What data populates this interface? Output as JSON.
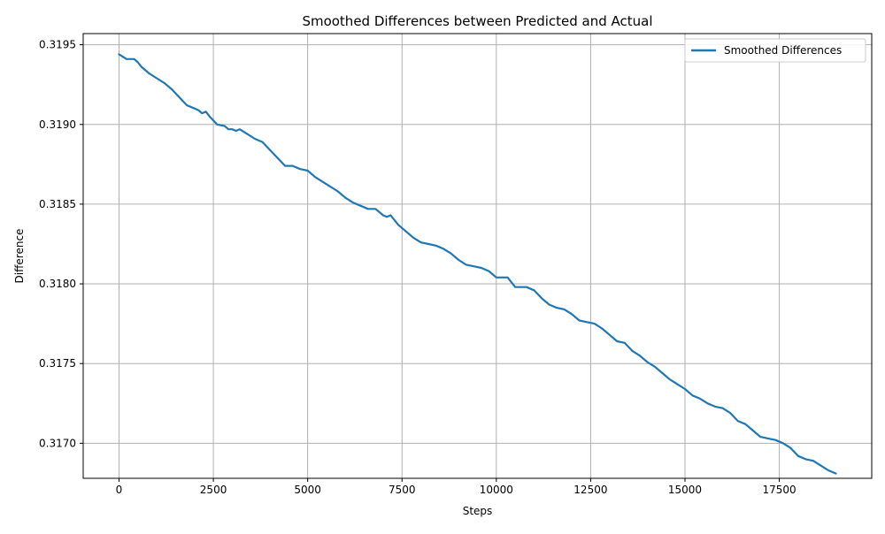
{
  "chart_data": {
    "type": "line",
    "title": "Smoothed Differences between Predicted and Actual",
    "xlabel": "Steps",
    "ylabel": "Difference",
    "xlim": [
      -950,
      19950
    ],
    "ylim": [
      0.31678,
      0.31957
    ],
    "xticks": [
      0,
      2500,
      5000,
      7500,
      10000,
      12500,
      15000,
      17500
    ],
    "xtick_labels": [
      "0",
      "2500",
      "5000",
      "7500",
      "10000",
      "12500",
      "15000",
      "17500"
    ],
    "yticks": [
      0.317,
      0.3175,
      0.318,
      0.3185,
      0.319,
      0.3195
    ],
    "ytick_labels": [
      "0.3170",
      "0.3175",
      "0.3180",
      "0.3185",
      "0.3190",
      "0.3195"
    ],
    "grid": true,
    "legend_position": "top-right",
    "series": [
      {
        "name": "Smoothed Differences",
        "color": "#1f77b4",
        "x": [
          0,
          200,
          400,
          500,
          600,
          800,
          1000,
          1200,
          1400,
          1600,
          1800,
          2000,
          2100,
          2200,
          2300,
          2400,
          2600,
          2800,
          2900,
          3000,
          3100,
          3200,
          3400,
          3600,
          3800,
          4000,
          4200,
          4400,
          4600,
          4800,
          5000,
          5200,
          5400,
          5600,
          5800,
          6000,
          6200,
          6400,
          6600,
          6800,
          7000,
          7100,
          7200,
          7400,
          7600,
          7800,
          8000,
          8200,
          8400,
          8600,
          8800,
          9000,
          9200,
          9400,
          9600,
          9800,
          10000,
          10200,
          10300,
          10500,
          10700,
          10800,
          11000,
          11200,
          11400,
          11600,
          11800,
          12000,
          12200,
          12400,
          12600,
          12800,
          13000,
          13200,
          13400,
          13600,
          13800,
          14000,
          14200,
          14400,
          14600,
          14800,
          15000,
          15200,
          15400,
          15600,
          15800,
          16000,
          16200,
          16400,
          16600,
          16800,
          17000,
          17200,
          17400,
          17600,
          17800,
          18000,
          18200,
          18400,
          18600,
          18800,
          19000
        ],
        "y": [
          0.31944,
          0.31941,
          0.31941,
          0.31939,
          0.31936,
          0.31932,
          0.31929,
          0.31926,
          0.31922,
          0.31917,
          0.31912,
          0.3191,
          0.31909,
          0.31907,
          0.31908,
          0.31905,
          0.319,
          0.31899,
          0.31897,
          0.31897,
          0.31896,
          0.31897,
          0.31894,
          0.31891,
          0.31889,
          0.31884,
          0.31879,
          0.31874,
          0.31874,
          0.31872,
          0.31871,
          0.31867,
          0.31864,
          0.31861,
          0.31858,
          0.31854,
          0.31851,
          0.31849,
          0.31847,
          0.31847,
          0.31843,
          0.31842,
          0.31843,
          0.31837,
          0.31833,
          0.31829,
          0.31826,
          0.31825,
          0.31824,
          0.31822,
          0.31819,
          0.31815,
          0.31812,
          0.31811,
          0.3181,
          0.31808,
          0.31804,
          0.31804,
          0.31804,
          0.31798,
          0.31798,
          0.31798,
          0.31796,
          0.31791,
          0.31787,
          0.31785,
          0.31784,
          0.31781,
          0.31777,
          0.31776,
          0.31775,
          0.31772,
          0.31768,
          0.31764,
          0.31763,
          0.31758,
          0.31755,
          0.31751,
          0.31748,
          0.31744,
          0.3174,
          0.31737,
          0.31734,
          0.3173,
          0.31728,
          0.31725,
          0.31723,
          0.31722,
          0.31719,
          0.31714,
          0.31712,
          0.31708,
          0.31704,
          0.31703,
          0.31702,
          0.317,
          0.31697,
          0.31692,
          0.3169,
          0.31689,
          0.31686,
          0.31683,
          0.31681
        ]
      }
    ]
  }
}
